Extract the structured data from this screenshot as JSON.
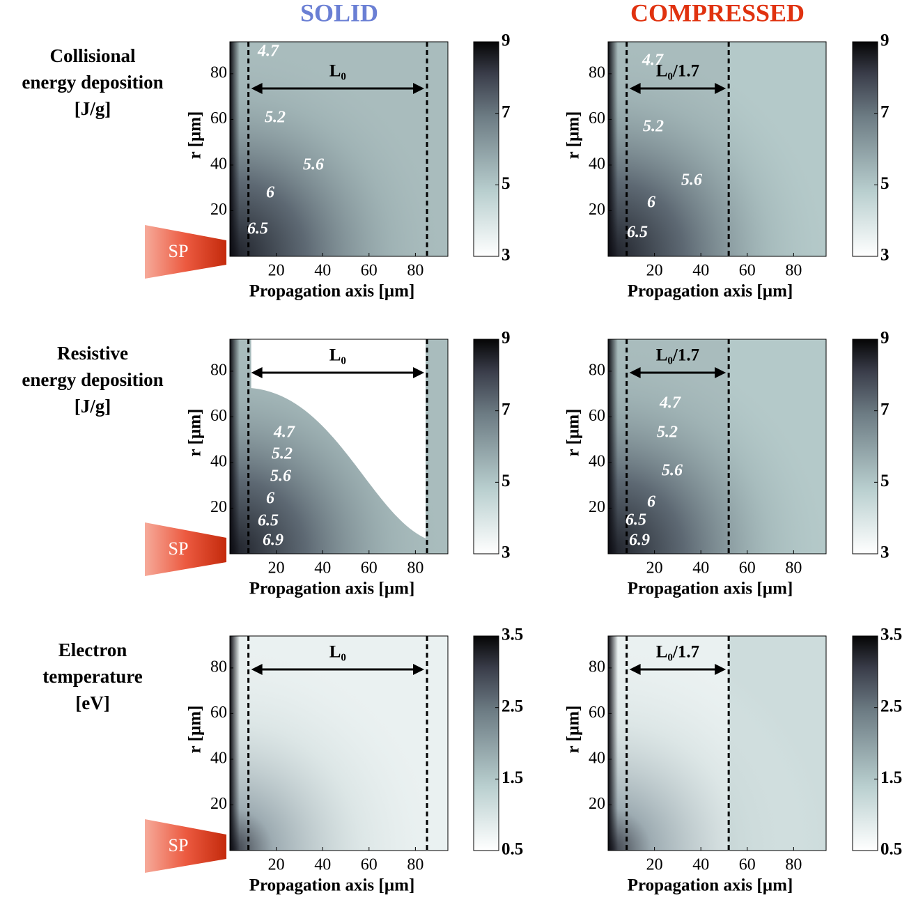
{
  "columns": [
    {
      "title": "SOLID",
      "color": "#6a7fd4"
    },
    {
      "title": "COMPRESSED",
      "color": "#e0320f"
    }
  ],
  "rows": [
    {
      "label": [
        "Collisional",
        "energy deposition",
        "[J/g]"
      ]
    },
    {
      "label": [
        "Resistive",
        "energy deposition",
        "[J/g]"
      ]
    },
    {
      "label": [
        "Electron",
        "temperature",
        "[eV]"
      ]
    }
  ],
  "source_label": "SP",
  "chart_data": [
    {
      "type": "heatmap",
      "xlabel": "Propagation axis [µm]",
      "ylabel": "r [µm]",
      "xlim": [
        0,
        94
      ],
      "ylim": [
        0,
        94
      ],
      "xticks": [
        20,
        40,
        60,
        80
      ],
      "yticks": [
        20,
        40,
        60,
        80
      ],
      "colorbar": {
        "lim": [
          3,
          9
        ],
        "ticks": [
          3,
          5,
          7,
          9
        ]
      },
      "markers": [
        8,
        85
      ],
      "annotation": "L₀",
      "contour_labels": [
        4.7,
        5.2,
        5.6,
        6,
        6.5
      ]
    },
    {
      "type": "heatmap",
      "xlabel": "Propagation axis [µm]",
      "ylabel": "r [µm]",
      "xlim": [
        0,
        94
      ],
      "ylim": [
        0,
        94
      ],
      "xticks": [
        20,
        40,
        60,
        80
      ],
      "yticks": [
        20,
        40,
        60,
        80
      ],
      "colorbar": {
        "lim": [
          3,
          9
        ],
        "ticks": [
          3,
          5,
          7,
          9
        ]
      },
      "markers": [
        8,
        52
      ],
      "annotation": "L₀/1.7",
      "contour_labels": [
        4.7,
        5.2,
        5.6,
        6,
        6.5
      ]
    },
    {
      "type": "heatmap",
      "xlabel": "Propagation axis [µm]",
      "ylabel": "r [µm]",
      "xlim": [
        0,
        94
      ],
      "ylim": [
        0,
        94
      ],
      "xticks": [
        20,
        40,
        60,
        80
      ],
      "yticks": [
        20,
        40,
        60,
        80
      ],
      "colorbar": {
        "lim": [
          3,
          9
        ],
        "ticks": [
          3,
          5,
          7,
          9
        ]
      },
      "markers": [
        8,
        85
      ],
      "annotation": "L₀",
      "contour_labels": [
        4.7,
        5.2,
        5.6,
        6,
        6.5,
        6.9
      ]
    },
    {
      "type": "heatmap",
      "xlabel": "Propagation axis [µm]",
      "ylabel": "r [µm]",
      "xlim": [
        0,
        94
      ],
      "ylim": [
        0,
        94
      ],
      "xticks": [
        20,
        40,
        60,
        80
      ],
      "yticks": [
        20,
        40,
        60,
        80
      ],
      "colorbar": {
        "lim": [
          3,
          9
        ],
        "ticks": [
          3,
          5,
          7,
          9
        ]
      },
      "markers": [
        8,
        52
      ],
      "annotation": "L₀/1.7",
      "contour_labels": [
        4.7,
        5.2,
        5.6,
        6,
        6.5,
        6.9
      ]
    },
    {
      "type": "heatmap",
      "xlabel": "Propagation axis [µm]",
      "ylabel": "r [µm]",
      "xlim": [
        0,
        94
      ],
      "ylim": [
        0,
        94
      ],
      "xticks": [
        20,
        40,
        60,
        80
      ],
      "yticks": [
        20,
        40,
        60,
        80
      ],
      "colorbar": {
        "lim": [
          0.5,
          3.5
        ],
        "ticks": [
          0.5,
          1.5,
          2.5,
          3.5
        ]
      },
      "markers": [
        8,
        85
      ],
      "annotation": "L₀",
      "contour_labels": []
    },
    {
      "type": "heatmap",
      "xlabel": "Propagation axis [µm]",
      "ylabel": "r [µm]",
      "xlim": [
        0,
        94
      ],
      "ylim": [
        0,
        94
      ],
      "xticks": [
        20,
        40,
        60,
        80
      ],
      "yticks": [
        20,
        40,
        60,
        80
      ],
      "colorbar": {
        "lim": [
          0.5,
          3.5
        ],
        "ticks": [
          0.5,
          1.5,
          2.5,
          3.5
        ]
      },
      "markers": [
        8,
        52
      ],
      "annotation": "L₀/1.7",
      "contour_labels": []
    }
  ]
}
